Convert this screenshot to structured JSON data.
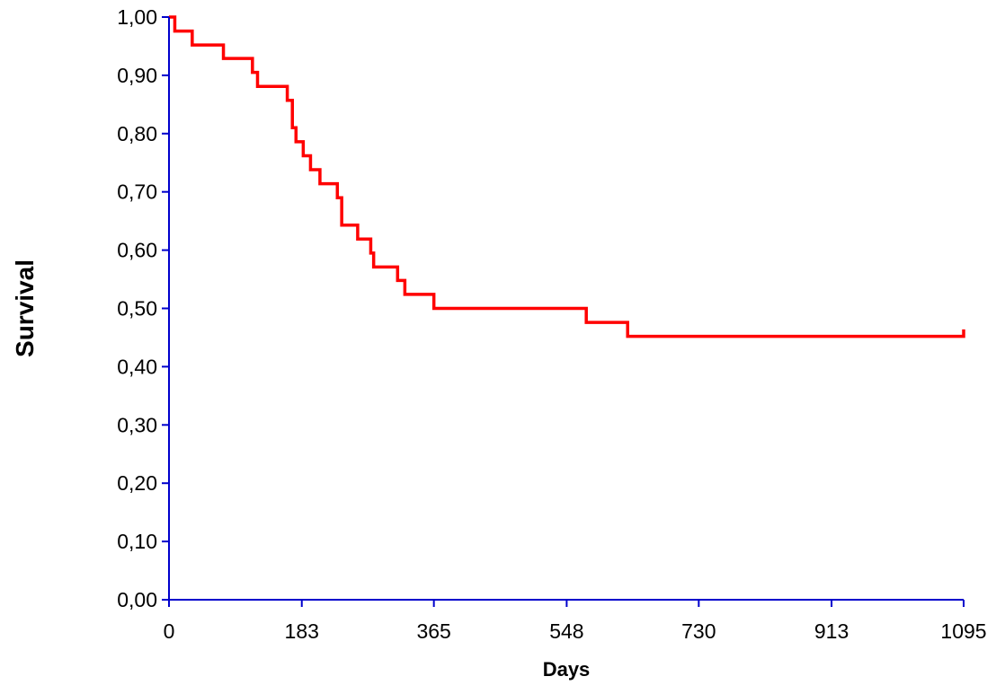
{
  "chart_data": {
    "type": "line",
    "step": true,
    "title": "",
    "xlabel": "Days",
    "ylabel": "Survival",
    "xlim": [
      0,
      1095
    ],
    "ylim": [
      0,
      1
    ],
    "xticks": [
      0,
      183,
      365,
      548,
      730,
      913,
      1095
    ],
    "xtick_labels": [
      "0",
      "183",
      "365",
      "548",
      "730",
      "913",
      "1095"
    ],
    "yticks": [
      0,
      0.1,
      0.2,
      0.3,
      0.4,
      0.5,
      0.6,
      0.7,
      0.8,
      0.9,
      1.0
    ],
    "ytick_labels": [
      "0,00",
      "0,10",
      "0,20",
      "0,30",
      "0,40",
      "0,50",
      "0,60",
      "0,70",
      "0,80",
      "0,90",
      "1,00"
    ],
    "grid": false,
    "legend": "none",
    "colors": {
      "axis": "#0000CC",
      "series": "#FF0000"
    },
    "series": [
      {
        "x": [
          0,
          8,
          32,
          75,
          115,
          122,
          163,
          170,
          175,
          185,
          195,
          208,
          232,
          238,
          242,
          260,
          278,
          282,
          315,
          325,
          365,
          575,
          632,
          1092,
          1095
        ],
        "y": [
          1.0,
          0.976,
          0.952,
          0.929,
          0.905,
          0.881,
          0.857,
          0.81,
          0.786,
          0.762,
          0.738,
          0.714,
          0.69,
          0.643,
          0.643,
          0.619,
          0.595,
          0.571,
          0.548,
          0.524,
          0.5,
          0.476,
          0.452,
          0.452,
          0.464
        ]
      }
    ]
  }
}
